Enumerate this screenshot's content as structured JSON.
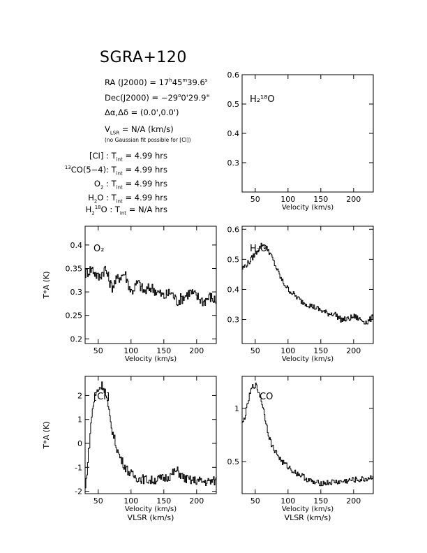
{
  "title": "SGRA+120",
  "info": {
    "ra_prefix": "RA (J2000) = 17",
    "ra_h": "h",
    "ra_mid": "45",
    "ra_m": "m",
    "ra_sec": "39.6",
    "ra_s": "s",
    "dec_prefix": "Dec(J2000) = −29",
    "dec_deg": "o",
    "dec_rest": "0'29.9\"",
    "offset": "Δα,Δδ = (0.0',0.0')",
    "vlsr_v": "V",
    "vlsr_sub": "LSR",
    "vlsr_rest": "= N/A (km/s)",
    "note": "(no Gaussian fit possible for [CI])",
    "tint": [
      {
        "pre": "",
        "sup": "",
        "label": "[CI] : T",
        "sub": "int",
        "value": "= 4.99 hrs"
      },
      {
        "pre": "",
        "sup": "13",
        "label": "CO(5−4): T",
        "sub": "int",
        "value": "= 4.99 hrs"
      },
      {
        "pre": "O",
        "sup": "",
        "sub2": "2",
        "label": " : T",
        "sub": "int",
        "value": "= 4.99 hrs"
      },
      {
        "pre": "H",
        "sup": "",
        "sub2": "2",
        "label": "O : T",
        "sub": "int",
        "value": "= 4.99 hrs"
      },
      {
        "pre": "H",
        "sup": "",
        "sub2": "2",
        "sup2": "18",
        "label": "O : T",
        "sub": "int",
        "value": "= N/A hrs"
      }
    ]
  },
  "chart_data": [
    {
      "type": "line",
      "id": "h218o",
      "label": "H₂¹⁸O",
      "xlabel": "Velocity (km/s)",
      "ylabel": "",
      "xlim": [
        30,
        230
      ],
      "ylim": [
        0.2,
        0.6
      ],
      "xticks": [
        50,
        100,
        150,
        200
      ],
      "yticks": [
        0.3,
        0.4,
        0.5,
        0.6
      ],
      "x": [],
      "y": []
    },
    {
      "type": "line",
      "id": "o2",
      "label": "O₂",
      "xlabel": "Velocity (km/s)",
      "ylabel": "T*A (K)",
      "xlim": [
        30,
        230
      ],
      "ylim": [
        0.19,
        0.44
      ],
      "xticks": [
        50,
        100,
        150,
        200
      ],
      "yticks": [
        0.2,
        0.25,
        0.3,
        0.35,
        0.4
      ],
      "x": [
        30,
        40,
        50,
        60,
        70,
        80,
        90,
        100,
        110,
        120,
        130,
        140,
        150,
        160,
        170,
        180,
        190,
        200,
        210,
        220,
        230
      ],
      "y": [
        0.34,
        0.35,
        0.33,
        0.35,
        0.31,
        0.33,
        0.34,
        0.3,
        0.32,
        0.3,
        0.31,
        0.3,
        0.29,
        0.3,
        0.28,
        0.29,
        0.3,
        0.29,
        0.28,
        0.29,
        0.28
      ]
    },
    {
      "type": "line",
      "id": "h2o",
      "label": "H₂O",
      "xlabel": "Velocity (km/s)",
      "ylabel": "",
      "xlim": [
        30,
        230
      ],
      "ylim": [
        0.22,
        0.61
      ],
      "xticks": [
        50,
        100,
        150,
        200
      ],
      "yticks": [
        0.3,
        0.4,
        0.5,
        0.6
      ],
      "x": [
        30,
        40,
        50,
        60,
        70,
        80,
        90,
        100,
        110,
        120,
        130,
        140,
        150,
        160,
        170,
        180,
        190,
        200,
        210,
        220,
        230
      ],
      "y": [
        0.47,
        0.49,
        0.52,
        0.55,
        0.53,
        0.48,
        0.43,
        0.4,
        0.38,
        0.36,
        0.35,
        0.34,
        0.33,
        0.32,
        0.32,
        0.3,
        0.3,
        0.31,
        0.3,
        0.29,
        0.31
      ]
    },
    {
      "type": "line",
      "id": "ci",
      "label": "[CI]",
      "xlabel": "Velocity (km/s)",
      "ylabel": "T*A (K)",
      "xlabel2": "VLSR (km/s)",
      "xlim": [
        30,
        230
      ],
      "ylim": [
        -2.1,
        2.8
      ],
      "xticks": [
        50,
        100,
        150,
        200
      ],
      "yticks": [
        -2,
        -1,
        0,
        1,
        2
      ],
      "x": [
        30,
        36,
        40,
        44,
        48,
        52,
        56,
        60,
        64,
        68,
        72,
        76,
        80,
        85,
        90,
        95,
        100,
        110,
        120,
        130,
        140,
        150,
        160,
        165,
        170,
        175,
        180,
        190,
        200,
        210,
        220,
        230
      ],
      "y": [
        -1.9,
        0.0,
        1.3,
        1.9,
        2.2,
        2.35,
        2.45,
        2.2,
        1.6,
        0.9,
        0.4,
        0.0,
        -0.4,
        -0.7,
        -0.95,
        -1.15,
        -1.3,
        -1.45,
        -1.5,
        -1.55,
        -1.5,
        -1.45,
        -1.35,
        -1.2,
        -1.15,
        -1.3,
        -1.45,
        -1.55,
        -1.55,
        -1.6,
        -1.6,
        -1.55
      ]
    },
    {
      "type": "line",
      "id": "co",
      "label": "CO",
      "xlabel": "Velocity (km/s)",
      "ylabel": "",
      "xlabel2": "VLSR (km/s)",
      "xlim": [
        30,
        230
      ],
      "ylim": [
        0.2,
        1.3
      ],
      "xticks": [
        50,
        100,
        150,
        200
      ],
      "yticks": [
        0.5,
        1
      ],
      "x": [
        30,
        35,
        40,
        45,
        50,
        55,
        60,
        65,
        70,
        75,
        80,
        90,
        100,
        110,
        120,
        130,
        140,
        150,
        160,
        170,
        180,
        190,
        200,
        210,
        220,
        230
      ],
      "y": [
        0.85,
        0.95,
        1.1,
        1.2,
        1.22,
        1.15,
        1.05,
        0.9,
        0.75,
        0.65,
        0.6,
        0.5,
        0.45,
        0.4,
        0.37,
        0.33,
        0.3,
        0.3,
        0.3,
        0.31,
        0.31,
        0.32,
        0.33,
        0.33,
        0.34,
        0.36
      ]
    }
  ]
}
